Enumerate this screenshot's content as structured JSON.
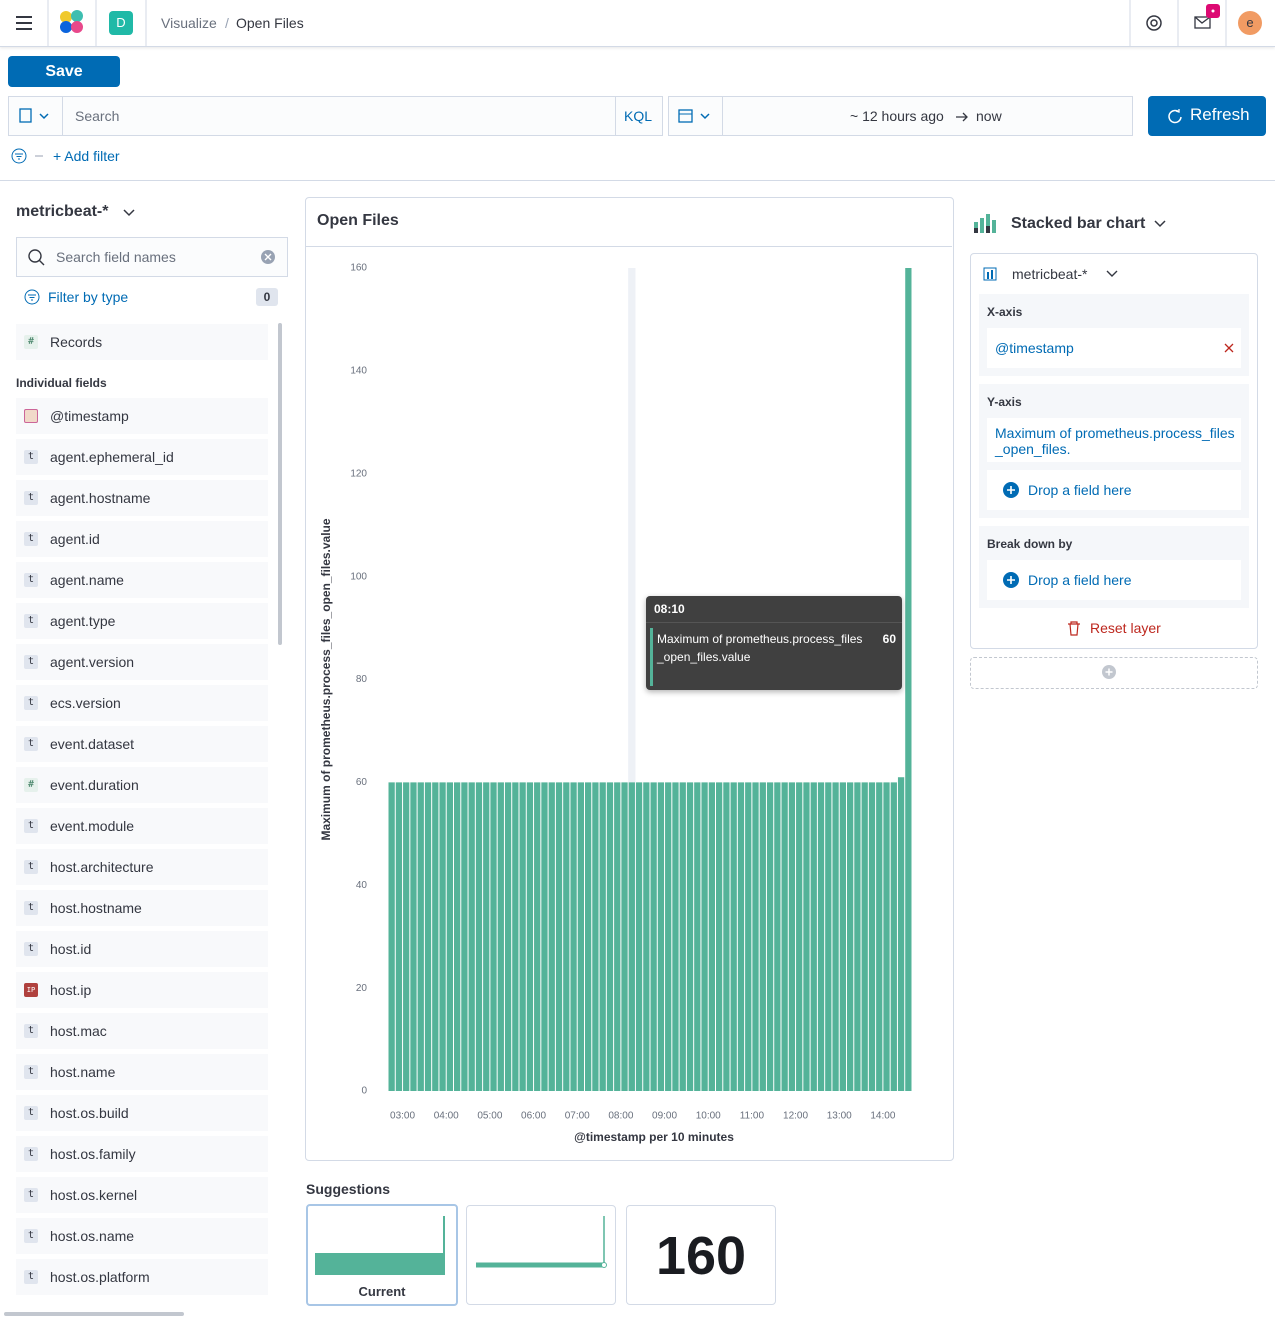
{
  "header": {
    "app_initial": "D",
    "breadcrumb": [
      "Visualize",
      "Open Files"
    ],
    "user_initial": "e"
  },
  "toolbar": {
    "save": "Save",
    "search_placeholder": "Search",
    "query_language": "KQL",
    "time_start": "~ 12 hours ago",
    "time_end": "now",
    "refresh": "Refresh",
    "add_filter": "+ Add filter"
  },
  "sidebar": {
    "index_pattern": "metricbeat-*",
    "field_search_placeholder": "Search field names",
    "filter_by_type": "Filter by type",
    "filter_count": 0,
    "records": {
      "icon": "#",
      "name": "Records"
    },
    "individual_heading": "Individual fields",
    "fields": [
      "@timestamp",
      "agent.ephemeral_id",
      "agent.hostname",
      "agent.id",
      "agent.name",
      "agent.type",
      "agent.version",
      "ecs.version",
      "event.dataset",
      "event.duration",
      "event.module",
      "host.architecture",
      "host.hostname",
      "host.id",
      "host.ip",
      "host.mac",
      "host.name",
      "host.os.build",
      "host.os.family",
      "host.os.kernel",
      "host.os.name",
      "host.os.platform"
    ],
    "field_icons": [
      null,
      "t",
      "t",
      "t",
      "t",
      "t",
      "t",
      "t",
      "t",
      "#",
      "t",
      "t",
      "t",
      "t",
      "IP",
      "t",
      "t",
      "t",
      "t",
      "t",
      "t",
      "t"
    ]
  },
  "config": {
    "chart_type": "Stacked bar chart",
    "layer_index": "metricbeat-*",
    "x_axis_label": "X-axis",
    "x_axis_field": "@timestamp",
    "y_axis_label": "Y-axis",
    "y_axis_field": "Maximum of prometheus.process_files_open_files.",
    "drop_field": "Drop a field here",
    "breakdown_label": "Break down by",
    "reset_layer": "Reset layer"
  },
  "suggestions": {
    "title": "Suggestions",
    "current": "Current",
    "metric": 160
  },
  "chart_data": {
    "type": "bar",
    "title": "Open Files",
    "x_label": "@timestamp per 10 minutes",
    "y_label": "Maximum of prometheus.process_files_open_files.value",
    "color": "#54b399",
    "grid": false,
    "categories": [
      null,
      null,
      "03:00",
      null,
      null,
      null,
      null,
      null,
      "04:00",
      null,
      null,
      null,
      null,
      null,
      "05:00",
      null,
      null,
      null,
      null,
      null,
      "06:00",
      null,
      null,
      null,
      null,
      null,
      "07:00",
      null,
      null,
      null,
      null,
      null,
      "08:00",
      null,
      null,
      null,
      null,
      null,
      "09:00",
      null,
      null,
      null,
      null,
      null,
      "10:00",
      null,
      null,
      null,
      null,
      null,
      "11:00",
      null,
      null,
      null,
      null,
      null,
      "12:00",
      null,
      null,
      null,
      null,
      null,
      "13:00",
      null,
      null,
      null,
      null,
      null,
      "14:00",
      null,
      null,
      null
    ],
    "values": [
      60,
      60,
      60,
      60,
      60,
      60,
      60,
      60,
      60,
      60,
      60,
      60,
      60,
      60,
      60,
      60,
      60,
      60,
      60,
      60,
      60,
      60,
      60,
      60,
      60,
      60,
      60,
      60,
      60,
      60,
      60,
      60,
      60,
      60,
      60,
      60,
      60,
      60,
      60,
      60,
      60,
      60,
      60,
      60,
      60,
      60,
      60,
      60,
      60,
      60,
      60,
      60,
      60,
      60,
      60,
      60,
      60,
      60,
      60,
      60,
      60,
      60,
      60,
      60,
      60,
      60,
      60,
      60,
      60,
      60,
      61,
      160
    ],
    "ylim": [
      0,
      160
    ],
    "yticks": [
      0,
      20,
      40,
      60,
      80,
      100,
      120,
      140,
      160
    ],
    "tooltip": {
      "title": "08:10",
      "index": 33
    }
  }
}
